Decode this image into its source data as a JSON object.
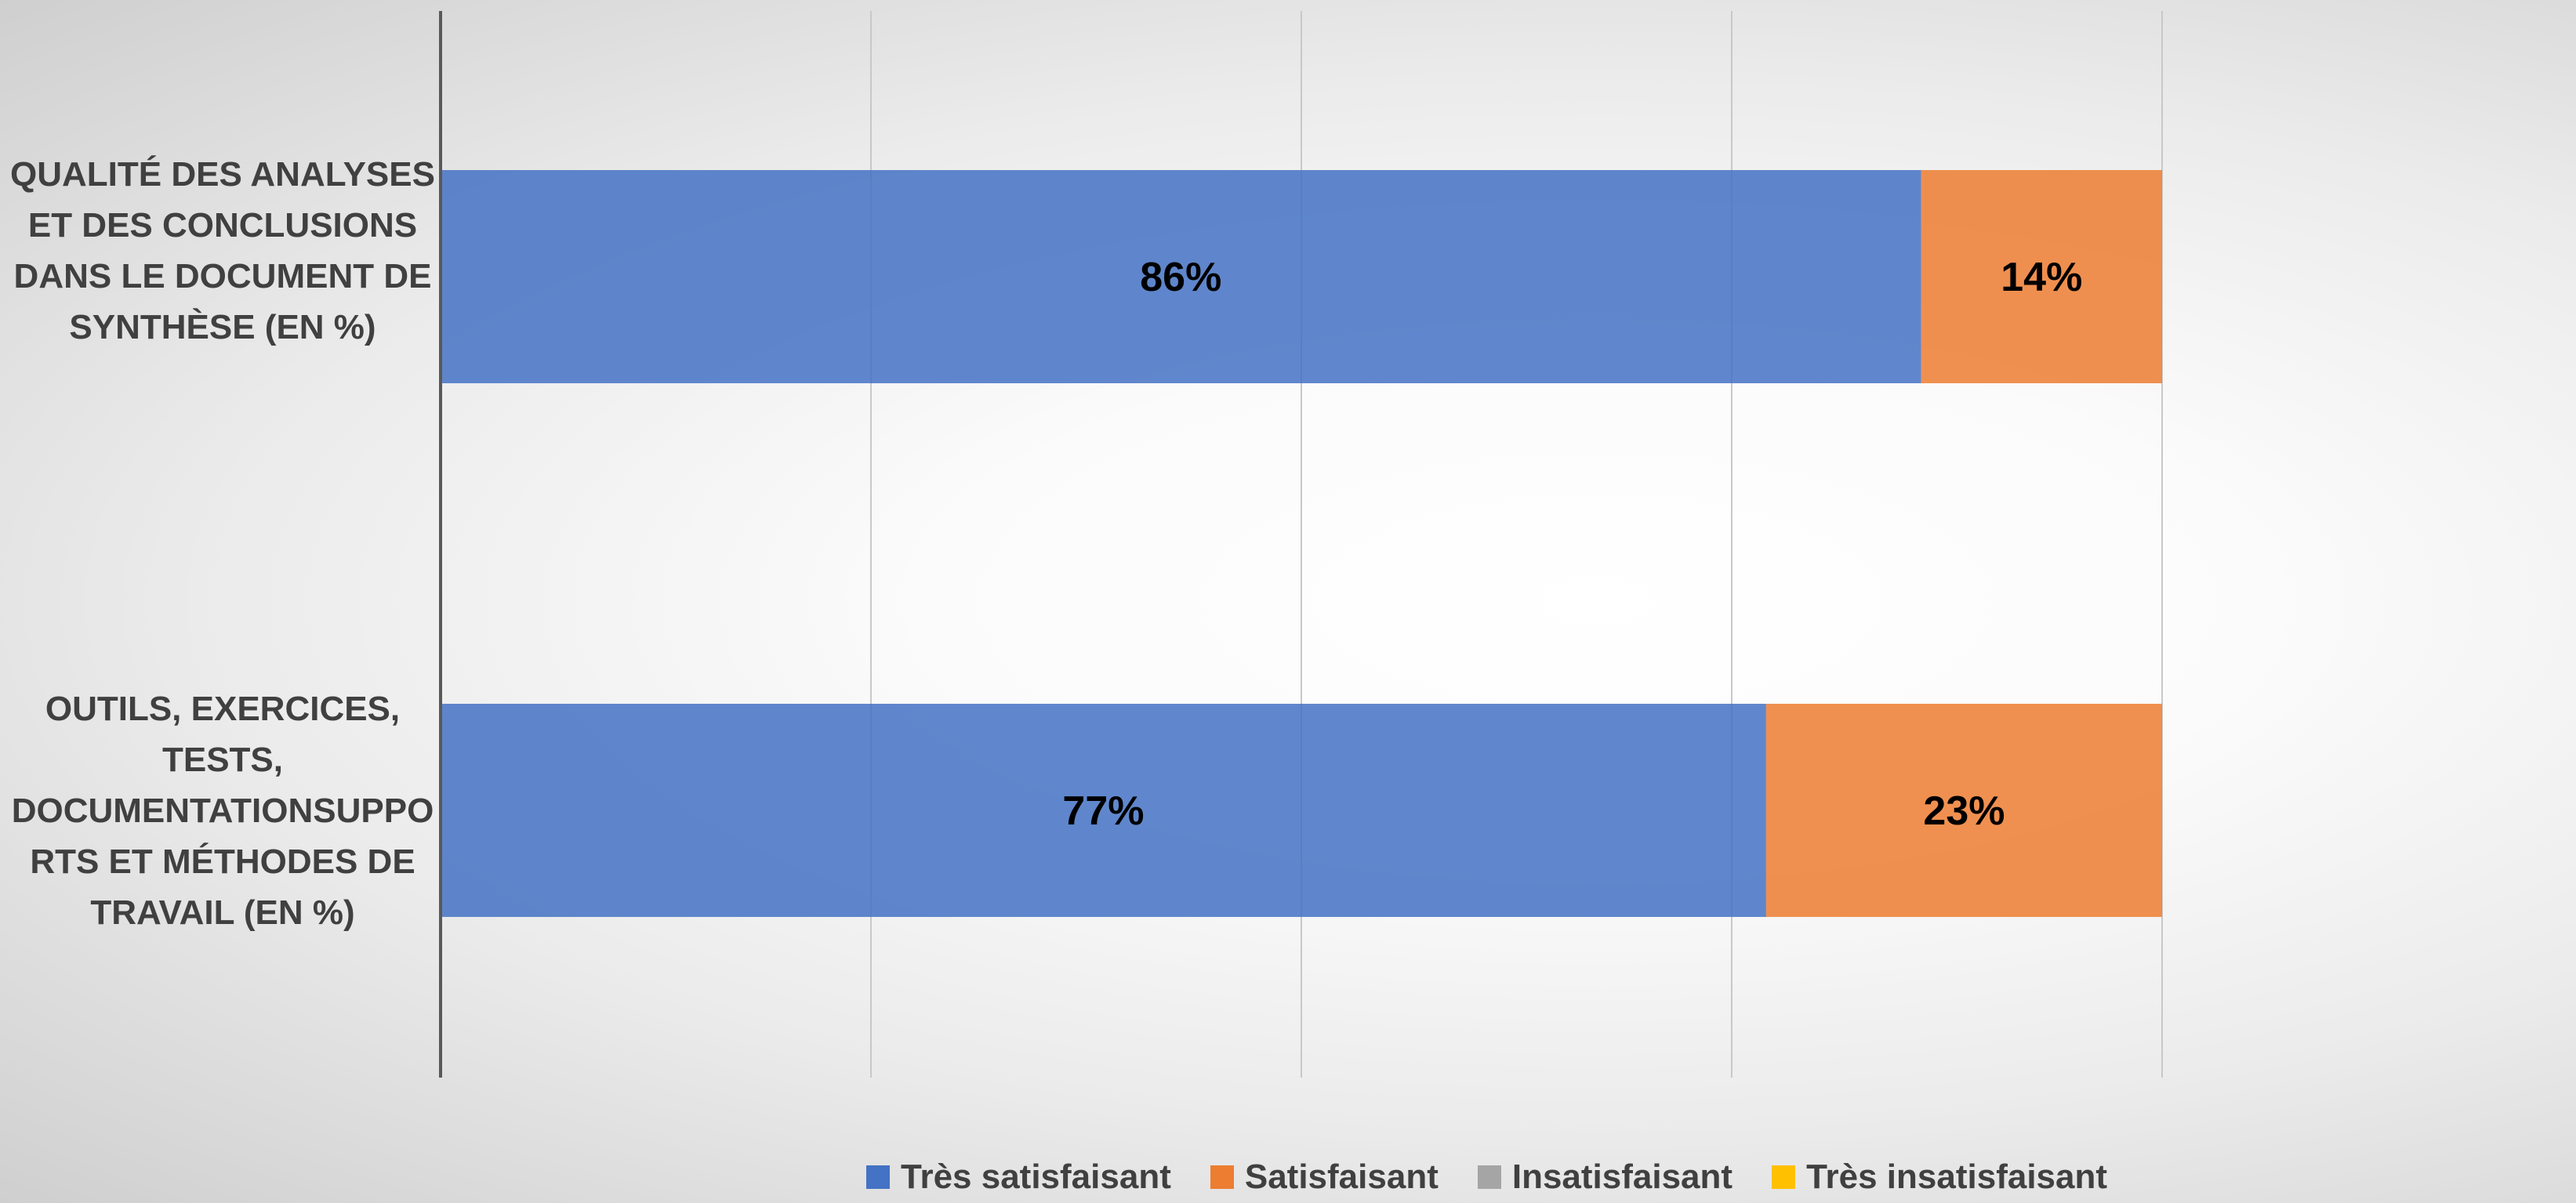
{
  "chart_data": {
    "type": "bar",
    "orientation": "horizontal",
    "stacked": true,
    "percent_stacked": true,
    "categories": [
      "QUALITÉ DES ANALYSES ET DES CONCLUSIONS DANS LE DOCUMENT DE SYNTHÈSE (EN %)",
      "OUTILS, EXERCICES, TESTS, DOCUMENTATIONSUPPORTS ET MÉTHODES DE TRAVAIL (EN %)"
    ],
    "series": [
      {
        "name": "Très satisfaisant",
        "values": [
          86,
          77
        ],
        "labels": [
          "86%",
          "77%"
        ],
        "color": "#4472C4"
      },
      {
        "name": "Satisfaisant",
        "values": [
          14,
          23
        ],
        "labels": [
          "14%",
          "23%"
        ],
        "color": "#ED7D31"
      },
      {
        "name": "Insatisfaisant",
        "values": [
          0,
          0
        ],
        "labels": [
          "",
          ""
        ],
        "color": "#A5A5A5"
      },
      {
        "name": "Très insatisfaisant",
        "values": [
          0,
          0
        ],
        "labels": [
          "",
          ""
        ],
        "color": "#FFC000"
      }
    ],
    "xlim": [
      0,
      100
    ],
    "grid": true,
    "legend_position": "bottom"
  }
}
